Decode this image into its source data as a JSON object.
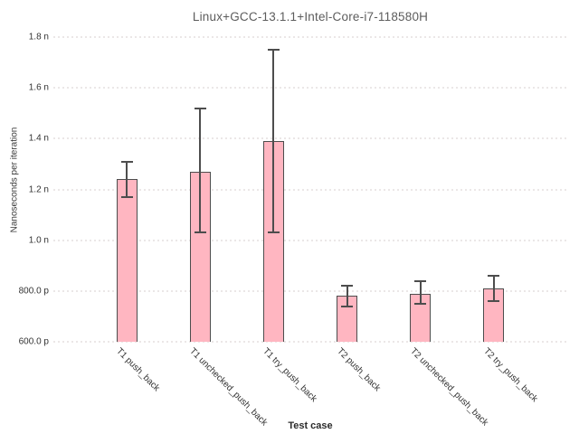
{
  "chart_data": {
    "type": "bar",
    "title": "Linux+GCC-13.1.1+Intel-Core-i7-118580H",
    "xlabel": "Test case",
    "ylabel": "Nanoseconds per iteration",
    "categories": [
      "T1 push_back",
      "T1 unchecked_push_back",
      "T1 try_push_back",
      "T2 push_back",
      "T2 unchecked_push_back",
      "T2 try_push_back"
    ],
    "values_ns": [
      1.24,
      1.27,
      1.39,
      0.78,
      0.79,
      0.81
    ],
    "error_high_ns": [
      1.31,
      1.52,
      1.75,
      0.82,
      0.84,
      0.86
    ],
    "error_low_ns": [
      1.17,
      1.03,
      1.03,
      0.74,
      0.75,
      0.76
    ],
    "ylim_ns": [
      0.6,
      1.8
    ],
    "yticks": {
      "values_ns": [
        0.6,
        0.8,
        1.0,
        1.2,
        1.4,
        1.6,
        1.8
      ],
      "labels": [
        "600.0 p",
        "800.0 p",
        "1.0 n",
        "1.2 n",
        "1.4 n",
        "1.6 n",
        "1.8 n"
      ]
    },
    "grid": "horizontal-dotted",
    "legend": "none",
    "error_bars": true,
    "colors": {
      "bar_fill": "#ffb6c1",
      "bar_border": "#4d4d4d",
      "error_bar": "#4d4d4d",
      "gridline": "#ebe7e7",
      "title_text": "#5c5c5c",
      "tick_text": "#333333"
    }
  }
}
